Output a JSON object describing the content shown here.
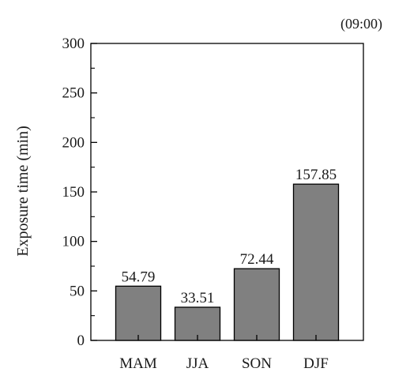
{
  "chart_data": {
    "type": "bar",
    "title": "(09:00)",
    "xlabel": "",
    "ylabel": "Exposure time (min)",
    "categories": [
      "MAM",
      "JJA",
      "SON",
      "DJF"
    ],
    "values": [
      54.79,
      33.51,
      72.44,
      157.85
    ],
    "data_labels": [
      "54.79",
      "33.51",
      "72.44",
      "157.85"
    ],
    "ylim": [
      0,
      300
    ],
    "yticks": [
      0,
      50,
      100,
      150,
      200,
      250,
      300
    ],
    "grid": false,
    "bar_color": "#808080",
    "bar_edge_color": "#000000"
  }
}
